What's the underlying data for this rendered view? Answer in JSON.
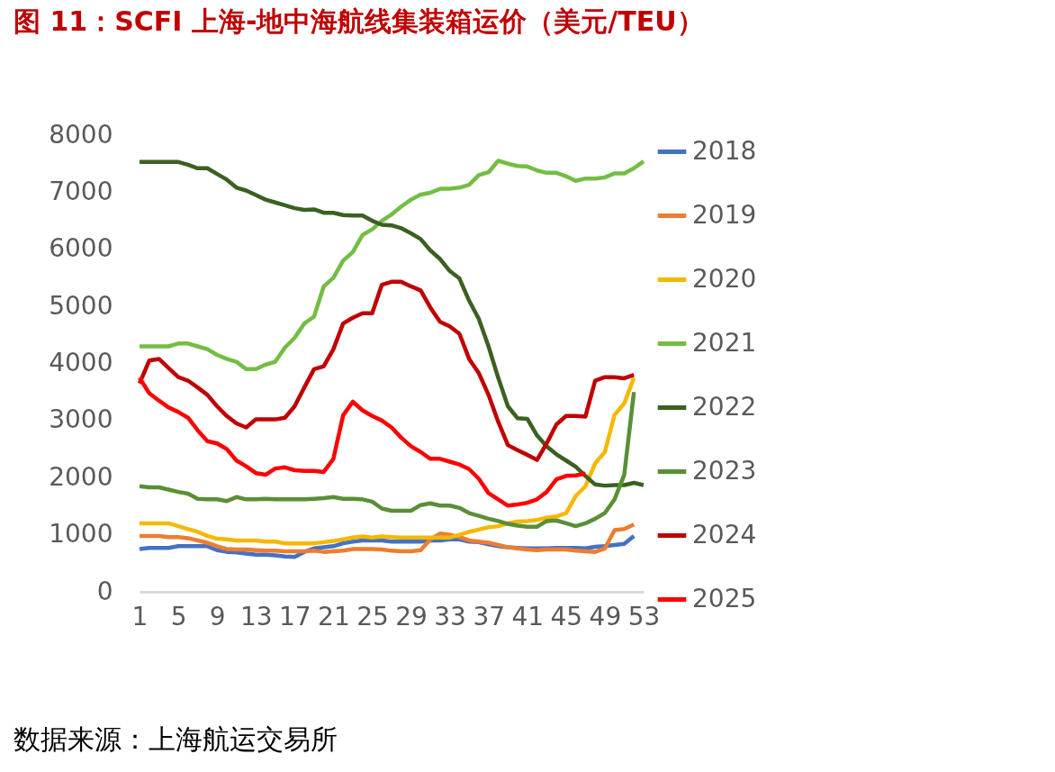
{
  "chart_data": {
    "type": "line",
    "title": "图 11：SCFI 上海-地中海航线集装箱运价（美元/TEU）",
    "x": [
      1,
      2,
      3,
      4,
      5,
      6,
      7,
      8,
      9,
      10,
      11,
      12,
      13,
      14,
      15,
      16,
      17,
      18,
      19,
      20,
      21,
      22,
      23,
      24,
      25,
      26,
      27,
      28,
      29,
      30,
      31,
      32,
      33,
      34,
      35,
      36,
      37,
      38,
      39,
      40,
      41,
      42,
      43,
      44,
      45,
      46,
      47,
      48,
      49,
      50,
      51,
      52,
      53
    ],
    "xlim": [
      1,
      53
    ],
    "xticks": [
      1,
      5,
      9,
      13,
      17,
      21,
      25,
      29,
      33,
      37,
      41,
      45,
      49,
      53
    ],
    "ylim": [
      0,
      8000
    ],
    "yticks": [
      0,
      1000,
      2000,
      3000,
      4000,
      5000,
      6000,
      7000,
      8000
    ],
    "grid": false,
    "legend": "right",
    "marker": "none",
    "line_style": "solid",
    "series": [
      {
        "name": "2018",
        "color": "#4472c4",
        "values": [
          750,
          770,
          770,
          770,
          800,
          800,
          800,
          800,
          730,
          700,
          690,
          670,
          650,
          650,
          640,
          620,
          610,
          700,
          760,
          780,
          800,
          850,
          880,
          900,
          900,
          900,
          880,
          880,
          880,
          880,
          900,
          900,
          920,
          920,
          880,
          870,
          830,
          800,
          780,
          770,
          760,
          760,
          760,
          770,
          770,
          770,
          760,
          790,
          800,
          820,
          840,
          980,
          null
        ]
      },
      {
        "name": "2019",
        "color": "#ed7d31",
        "values": [
          980,
          980,
          980,
          960,
          960,
          940,
          900,
          860,
          800,
          750,
          740,
          740,
          730,
          720,
          720,
          710,
          710,
          710,
          720,
          700,
          710,
          720,
          750,
          750,
          750,
          740,
          720,
          710,
          710,
          730,
          920,
          1020,
          1000,
          960,
          900,
          880,
          860,
          820,
          780,
          760,
          740,
          730,
          740,
          740,
          740,
          720,
          710,
          700,
          760,
          1080,
          1100,
          1180,
          null
        ]
      },
      {
        "name": "2020",
        "color": "#f5b800",
        "values": [
          1200,
          1200,
          1200,
          1200,
          1150,
          1100,
          1050,
          980,
          930,
          920,
          900,
          900,
          900,
          880,
          880,
          850,
          850,
          850,
          850,
          870,
          890,
          920,
          950,
          970,
          950,
          970,
          960,
          950,
          950,
          950,
          950,
          950,
          950,
          1000,
          1050,
          1090,
          1130,
          1150,
          1200,
          1230,
          1240,
          1260,
          1300,
          1320,
          1380,
          1680,
          1850,
          2250,
          2450,
          3100,
          3300,
          3750,
          null
        ]
      },
      {
        "name": "2021",
        "color": "#74bd44",
        "values": [
          4300,
          4300,
          4300,
          4300,
          4350,
          4350,
          4300,
          4250,
          4150,
          4080,
          4030,
          3900,
          3900,
          3980,
          4030,
          4280,
          4450,
          4700,
          4820,
          5350,
          5500,
          5800,
          5950,
          6250,
          6350,
          6500,
          6610,
          6750,
          6870,
          6960,
          6990,
          7060,
          7060,
          7080,
          7130,
          7300,
          7350,
          7550,
          7500,
          7460,
          7450,
          7380,
          7340,
          7340,
          7280,
          7200,
          7240,
          7240,
          7260,
          7330,
          7330,
          7420,
          7540
        ]
      },
      {
        "name": "2022",
        "color": "#3b6121",
        "values": [
          7530,
          7530,
          7530,
          7530,
          7530,
          7480,
          7420,
          7420,
          7320,
          7220,
          7080,
          7030,
          6950,
          6870,
          6820,
          6770,
          6720,
          6690,
          6700,
          6640,
          6640,
          6600,
          6590,
          6590,
          6500,
          6430,
          6420,
          6370,
          6280,
          6180,
          5980,
          5830,
          5620,
          5490,
          5100,
          4780,
          4300,
          3750,
          3250,
          3040,
          3030,
          2740,
          2550,
          2410,
          2300,
          2190,
          2030,
          1880,
          1860,
          1870,
          1870,
          1910,
          1870
        ]
      },
      {
        "name": "2023",
        "color": "#5a8f35",
        "values": [
          1850,
          1830,
          1830,
          1790,
          1750,
          1720,
          1630,
          1620,
          1620,
          1590,
          1660,
          1620,
          1620,
          1630,
          1620,
          1620,
          1620,
          1620,
          1630,
          1640,
          1660,
          1630,
          1630,
          1620,
          1580,
          1460,
          1420,
          1420,
          1420,
          1520,
          1550,
          1510,
          1510,
          1470,
          1380,
          1330,
          1280,
          1240,
          1190,
          1160,
          1140,
          1140,
          1240,
          1250,
          1200,
          1150,
          1200,
          1280,
          1380,
          1620,
          2050,
          3500,
          null
        ]
      },
      {
        "name": "2024",
        "color": "#c00000",
        "values": [
          3650,
          4050,
          4080,
          3920,
          3760,
          3700,
          3580,
          3450,
          3250,
          3080,
          2950,
          2880,
          3020,
          3020,
          3020,
          3050,
          3250,
          3580,
          3900,
          3950,
          4250,
          4700,
          4800,
          4880,
          4880,
          5380,
          5430,
          5430,
          5350,
          5280,
          4980,
          4730,
          4650,
          4520,
          4080,
          3830,
          3450,
          2980,
          2570,
          2480,
          2400,
          2310,
          2600,
          2930,
          3080,
          3080,
          3070,
          3700,
          3760,
          3760,
          3740,
          3800,
          null
        ]
      },
      {
        "name": "2025",
        "color": "#ff0000",
        "values": [
          3750,
          3480,
          3350,
          3230,
          3150,
          3050,
          2830,
          2640,
          2600,
          2500,
          2300,
          2200,
          2080,
          2050,
          2160,
          2180,
          2130,
          2120,
          2120,
          2100,
          2330,
          3090,
          3330,
          3180,
          3080,
          3000,
          2880,
          2700,
          2550,
          2450,
          2330,
          2330,
          2280,
          2230,
          2150,
          1980,
          1730,
          1620,
          1510,
          1530,
          1560,
          1620,
          1750,
          1970,
          2030,
          2040,
          2070,
          null,
          null,
          null,
          null,
          null,
          null
        ]
      }
    ],
    "annotations": [
      "数据来源：上海航运交易所"
    ]
  }
}
